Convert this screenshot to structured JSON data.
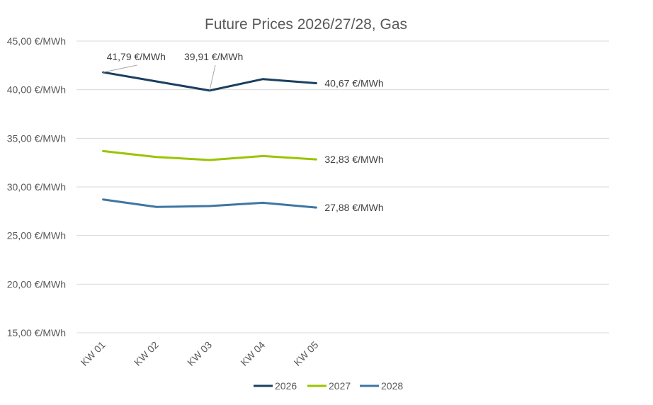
{
  "chart_data": {
    "type": "line",
    "title": "Future Prices 2026/27/28, Gas",
    "xlabel": "",
    "ylabel": "",
    "categories": [
      "KW 01",
      "KW 02",
      "KW 03",
      "KW 04",
      "KW 05"
    ],
    "category_slots": 10,
    "ylim": [
      15,
      45
    ],
    "yticks": [
      15,
      20,
      25,
      30,
      35,
      40,
      45
    ],
    "ytick_labels": [
      "15,00 €/MWh",
      "20,00 €/MWh",
      "25,00 €/MWh",
      "30,00 €/MWh",
      "35,00 €/MWh",
      "40,00 €/MWh",
      "45,00 €/MWh"
    ],
    "grid": true,
    "legend_position": "bottom",
    "series": [
      {
        "name": "2026",
        "color": "#1b3f5e",
        "values": [
          41.79,
          40.85,
          39.91,
          41.09,
          40.67
        ]
      },
      {
        "name": "2027",
        "color": "#9bc400",
        "values": [
          33.69,
          33.08,
          32.77,
          33.18,
          32.83
        ]
      },
      {
        "name": "2028",
        "color": "#3e76a3",
        "values": [
          28.71,
          27.94,
          28.03,
          28.37,
          27.88
        ]
      }
    ],
    "annotations": [
      {
        "series": 0,
        "index": 0,
        "text": "41,79 €/MWh",
        "leader": true
      },
      {
        "series": 0,
        "index": 2,
        "text": "39,91 €/MWh",
        "leader": true
      },
      {
        "series": 0,
        "index": 4,
        "text": "40,67 €/MWh",
        "leader": false
      },
      {
        "series": 1,
        "index": 4,
        "text": "32,83 €/MWh",
        "leader": false
      },
      {
        "series": 2,
        "index": 4,
        "text": "27,88 €/MWh",
        "leader": false
      }
    ]
  }
}
